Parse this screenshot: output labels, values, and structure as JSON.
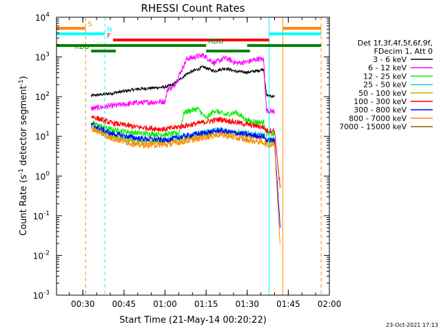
{
  "chart_data": {
    "type": "line",
    "title": "RHESSI Count Rates",
    "xlabel": "Start Time (21-May-14 00:20:22)",
    "ylabel": "Count Rate (s^-1 detector segment^-1)",
    "ylabel_parts": [
      "Count Rate (s",
      "-1",
      " detector segment",
      "-1",
      ")"
    ],
    "y_scale": "log",
    "ylim": [
      0.001,
      10000
    ],
    "xlim": [
      "00:20:22",
      "02:00:00"
    ],
    "x_ticks": [
      "00:30",
      "00:45",
      "01:00",
      "01:15",
      "01:30",
      "01:45",
      "02:00"
    ],
    "y_ticks": [
      {
        "base": "10",
        "exp": "-3"
      },
      {
        "base": "10",
        "exp": "-2"
      },
      {
        "base": "10",
        "exp": "-1"
      },
      {
        "base": "10",
        "exp": "0"
      },
      {
        "base": "10",
        "exp": "1"
      },
      {
        "base": "10",
        "exp": "2"
      },
      {
        "base": "10",
        "exp": "3"
      },
      {
        "base": "10",
        "exp": "4"
      }
    ],
    "legend": {
      "placement": "right",
      "header": [
        "Det 1f,3f,4f,5f,6f,9f,",
        "FDecim 1, Att 0"
      ]
    },
    "series": [
      {
        "name": "3 - 6 keV",
        "color": "#000000",
        "points": [
          [
            "00:33",
            105
          ],
          [
            "00:40",
            120
          ],
          [
            "00:50",
            155
          ],
          [
            "01:00",
            175
          ],
          [
            "01:03",
            200
          ],
          [
            "01:08",
            380
          ],
          [
            "01:14",
            560
          ],
          [
            "01:18",
            440
          ],
          [
            "01:22",
            520
          ],
          [
            "01:26",
            430
          ],
          [
            "01:30",
            410
          ],
          [
            "01:34",
            450
          ],
          [
            "01:36",
            500
          ],
          [
            "01:37",
            110
          ],
          [
            "01:40",
            100
          ]
        ]
      },
      {
        "name": "6 - 12 keV",
        "color": "#ff00ff",
        "points": [
          [
            "00:33",
            50
          ],
          [
            "00:40",
            58
          ],
          [
            "00:50",
            70
          ],
          [
            "01:00",
            75
          ],
          [
            "01:01",
            160
          ],
          [
            "01:03",
            170
          ],
          [
            "01:08",
            900
          ],
          [
            "01:14",
            1100
          ],
          [
            "01:18",
            700
          ],
          [
            "01:22",
            950
          ],
          [
            "01:26",
            700
          ],
          [
            "01:30",
            750
          ],
          [
            "01:34",
            900
          ],
          [
            "01:36",
            850
          ],
          [
            "01:37",
            45
          ],
          [
            "01:40",
            42
          ]
        ]
      },
      {
        "name": "12 - 25 keV",
        "color": "#00ee00",
        "points": [
          [
            "00:33",
            22
          ],
          [
            "00:40",
            15
          ],
          [
            "00:50",
            12
          ],
          [
            "01:00",
            11
          ],
          [
            "01:05",
            12
          ],
          [
            "01:07",
            40
          ],
          [
            "01:12",
            50
          ],
          [
            "01:15",
            28
          ],
          [
            "01:18",
            45
          ],
          [
            "01:22",
            35
          ],
          [
            "01:26",
            40
          ],
          [
            "01:30",
            25
          ],
          [
            "01:36",
            22
          ],
          [
            "01:37",
            12
          ],
          [
            "01:40",
            11
          ]
        ]
      },
      {
        "name": "25 - 50 keV",
        "color": "#00d0d0",
        "points": [
          [
            "00:33",
            18
          ],
          [
            "00:40",
            11
          ],
          [
            "00:50",
            8
          ],
          [
            "01:00",
            8
          ],
          [
            "01:10",
            11
          ],
          [
            "01:15",
            13
          ],
          [
            "01:20",
            15
          ],
          [
            "01:25",
            13
          ],
          [
            "01:30",
            12
          ],
          [
            "01:36",
            11
          ],
          [
            "01:37",
            8
          ],
          [
            "01:40",
            8
          ]
        ]
      },
      {
        "name": "50 - 100 keV",
        "color": "#b8b800",
        "points": [
          [
            "00:33",
            17
          ],
          [
            "00:40",
            10
          ],
          [
            "00:50",
            7
          ],
          [
            "01:00",
            7
          ],
          [
            "01:10",
            9
          ],
          [
            "01:20",
            13
          ],
          [
            "01:30",
            10
          ],
          [
            "01:36",
            9
          ],
          [
            "01:37",
            7
          ],
          [
            "01:40",
            7
          ]
        ]
      },
      {
        "name": "100 - 300 keV",
        "color": "#ff0000",
        "points": [
          [
            "00:33",
            32
          ],
          [
            "00:40",
            22
          ],
          [
            "00:50",
            17
          ],
          [
            "01:00",
            15
          ],
          [
            "01:10",
            20
          ],
          [
            "01:20",
            27
          ],
          [
            "01:30",
            20
          ],
          [
            "01:36",
            17
          ],
          [
            "01:37",
            14
          ],
          [
            "01:40",
            14
          ],
          [
            "01:42",
            0.5
          ]
        ]
      },
      {
        "name": "300 - 800 keV",
        "color": "#0000ff",
        "points": [
          [
            "00:33",
            20
          ],
          [
            "00:40",
            12
          ],
          [
            "00:50",
            9
          ],
          [
            "01:00",
            8
          ],
          [
            "01:10",
            11
          ],
          [
            "01:20",
            14
          ],
          [
            "01:30",
            11
          ],
          [
            "01:36",
            10
          ],
          [
            "01:37",
            8
          ],
          [
            "01:40",
            8
          ],
          [
            "01:42",
            0.05
          ]
        ]
      },
      {
        "name": "800 - 7000 keV",
        "color": "#ff8800",
        "points": [
          [
            "00:33",
            16
          ],
          [
            "00:40",
            9
          ],
          [
            "00:50",
            6
          ],
          [
            "01:00",
            6
          ],
          [
            "01:10",
            8
          ],
          [
            "01:20",
            11
          ],
          [
            "01:30",
            8
          ],
          [
            "01:36",
            7
          ],
          [
            "01:37",
            6
          ],
          [
            "01:40",
            6
          ],
          [
            "01:42",
            0.02
          ]
        ]
      },
      {
        "name": "7000 - 15000 keV",
        "color": "#8b5a00",
        "points": []
      }
    ],
    "vertical_lines": [
      {
        "x": "00:20:22",
        "color": "#00ffff",
        "style": "solid"
      },
      {
        "x": "00:31",
        "color": "#ff8800",
        "style": "dashed"
      },
      {
        "x": "00:38",
        "color": "#00ffff",
        "style": "dashed"
      },
      {
        "x": "01:38",
        "color": "#00ffff",
        "style": "solid"
      },
      {
        "x": "01:43",
        "color": "#ff8800",
        "style": "solid"
      },
      {
        "x": "01:57",
        "color": "#ff8800",
        "style": "dashed"
      }
    ],
    "flag_bars": [
      {
        "label": "S",
        "color": "#ff8800",
        "segments": [
          [
            "00:20:22",
            "00:31"
          ],
          [
            "01:43",
            "01:57"
          ]
        ]
      },
      {
        "label": "N",
        "color": "#00ffff",
        "segments": [
          [
            "00:20:22",
            "00:38"
          ],
          [
            "01:38",
            "01:57"
          ]
        ]
      },
      {
        "label": "F",
        "color": "#ff0000",
        "segments": [
          [
            "00:41",
            "01:38"
          ]
        ]
      },
      {
        "label": "RDD",
        "color": "#008000",
        "segments": [
          [
            "00:20:22",
            "01:15"
          ],
          [
            "01:30",
            "01:57"
          ]
        ]
      },
      {
        "label": "RD6",
        "color": "#008000",
        "segments": [
          [
            "00:33",
            "00:42"
          ],
          [
            "01:15",
            "01:31"
          ]
        ]
      }
    ]
  },
  "footer": {
    "timestamp": "23-Oct-2021 17:13"
  }
}
